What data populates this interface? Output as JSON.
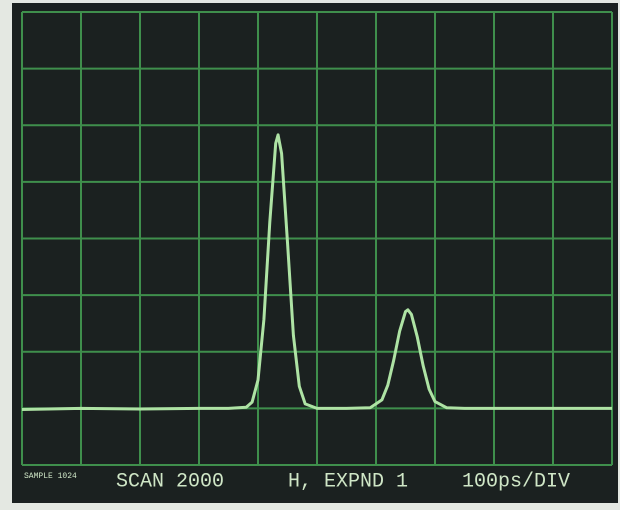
{
  "chart_data": {
    "type": "line",
    "x": [
      0,
      1,
      2,
      3,
      3.5,
      3.8,
      3.9,
      4.0,
      4.1,
      4.2,
      4.3,
      4.34,
      4.4,
      4.5,
      4.6,
      4.7,
      4.8,
      5.0,
      5.5,
      5.9,
      6.1,
      6.2,
      6.3,
      6.4,
      6.5,
      6.54,
      6.6,
      6.7,
      6.8,
      6.9,
      7.0,
      7.2,
      7.5,
      8,
      9,
      10
    ],
    "series": [
      {
        "color": "#aee3a4",
        "values": [
          0.98,
          1.0,
          0.99,
          1.0,
          1.0,
          1.02,
          1.11,
          1.5,
          2.57,
          4.29,
          5.68,
          5.83,
          5.5,
          3.93,
          2.29,
          1.39,
          1.08,
          1.0,
          1.0,
          1.01,
          1.15,
          1.41,
          1.85,
          2.36,
          2.71,
          2.74,
          2.66,
          2.26,
          1.75,
          1.34,
          1.12,
          1.01,
          1.0,
          1.0,
          1.0,
          1.0
        ]
      }
    ],
    "xlim": [
      0,
      10
    ],
    "ylim": [
      0,
      8
    ],
    "xticks": [
      0,
      1,
      2,
      3,
      4,
      5,
      6,
      7,
      8,
      9,
      10
    ],
    "yticks": [
      0,
      1,
      2,
      3,
      4,
      5,
      6,
      7,
      8
    ],
    "grid": true,
    "status": [
      "SAMPLE 1024",
      "SCAN 2000",
      "H, EXPND 1",
      "100ps/DIV"
    ]
  }
}
